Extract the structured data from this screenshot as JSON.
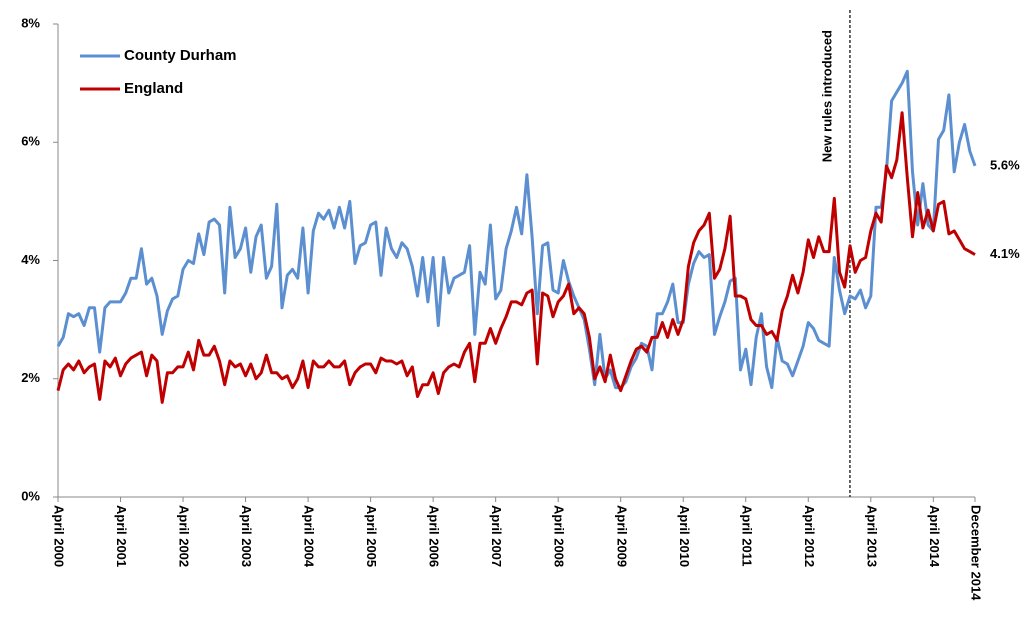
{
  "chart_data": {
    "type": "line",
    "categories": [
      "April 2000",
      null,
      null,
      null,
      null,
      null,
      null,
      null,
      null,
      null,
      null,
      null,
      "April 2001",
      null,
      null,
      null,
      null,
      null,
      null,
      null,
      null,
      null,
      null,
      null,
      "April 2002",
      null,
      null,
      null,
      null,
      null,
      null,
      null,
      null,
      null,
      null,
      null,
      "April 2003",
      null,
      null,
      null,
      null,
      null,
      null,
      null,
      null,
      null,
      null,
      null,
      "April 2004",
      null,
      null,
      null,
      null,
      null,
      null,
      null,
      null,
      null,
      null,
      null,
      "April 2005",
      null,
      null,
      null,
      null,
      null,
      null,
      null,
      null,
      null,
      null,
      null,
      "April 2006",
      null,
      null,
      null,
      null,
      null,
      null,
      null,
      null,
      null,
      null,
      null,
      "April 2007",
      null,
      null,
      null,
      null,
      null,
      null,
      null,
      null,
      null,
      null,
      null,
      "April 2008",
      null,
      null,
      null,
      null,
      null,
      null,
      null,
      null,
      null,
      null,
      null,
      "April 2009",
      null,
      null,
      null,
      null,
      null,
      null,
      null,
      null,
      null,
      null,
      null,
      "April 2010",
      null,
      null,
      null,
      null,
      null,
      null,
      null,
      null,
      null,
      null,
      null,
      "April 2011",
      null,
      null,
      null,
      null,
      null,
      null,
      null,
      null,
      null,
      null,
      null,
      "April 2012",
      null,
      null,
      null,
      null,
      null,
      null,
      null,
      null,
      null,
      null,
      null,
      "April 2013",
      null,
      null,
      null,
      null,
      null,
      null,
      null,
      null,
      null,
      null,
      null,
      "April 2014",
      null,
      null,
      null,
      null,
      null,
      null,
      null,
      "December 2014"
    ],
    "series": [
      {
        "name": "County Durham",
        "color": "#5b8fd0",
        "end_label": "5.6%",
        "values": [
          2.55,
          2.7,
          3.1,
          3.05,
          3.1,
          2.9,
          3.2,
          3.2,
          2.45,
          3.2,
          3.3,
          3.3,
          3.3,
          3.45,
          3.7,
          3.7,
          4.2,
          3.6,
          3.7,
          3.4,
          2.75,
          3.15,
          3.35,
          3.4,
          3.85,
          4.0,
          3.95,
          4.45,
          4.1,
          4.65,
          4.7,
          4.6,
          3.45,
          4.9,
          4.05,
          4.2,
          4.55,
          3.8,
          4.4,
          4.6,
          3.7,
          3.9,
          4.95,
          3.2,
          3.75,
          3.85,
          3.7,
          4.55,
          3.45,
          4.5,
          4.8,
          4.7,
          4.85,
          4.55,
          4.9,
          4.55,
          5.0,
          3.95,
          4.25,
          4.3,
          4.6,
          4.65,
          3.75,
          4.55,
          4.2,
          4.05,
          4.3,
          4.2,
          3.9,
          3.4,
          4.05,
          3.3,
          4.05,
          2.9,
          4.05,
          3.45,
          3.7,
          3.75,
          3.8,
          4.25,
          2.75,
          3.8,
          3.6,
          4.6,
          3.35,
          3.5,
          4.2,
          4.5,
          4.9,
          4.45,
          5.45,
          4.4,
          3.1,
          4.25,
          4.3,
          3.5,
          3.45,
          4.0,
          3.65,
          3.4,
          3.2,
          3.0,
          2.5,
          1.9,
          2.75,
          2.0,
          2.15,
          1.85,
          1.85,
          1.95,
          2.2,
          2.35,
          2.6,
          2.55,
          2.15,
          3.1,
          3.1,
          3.3,
          3.6,
          2.95,
          2.95,
          3.6,
          3.95,
          4.15,
          4.05,
          4.1,
          2.75,
          3.05,
          3.3,
          3.65,
          3.7,
          2.15,
          2.5,
          1.9,
          2.7,
          3.1,
          2.2,
          1.85,
          2.7,
          2.3,
          2.25,
          2.05,
          2.3,
          2.55,
          2.95,
          2.85,
          2.65,
          2.6,
          2.55,
          4.05,
          3.5,
          3.1,
          3.4,
          3.35,
          3.5,
          3.2,
          3.4,
          4.9,
          4.9,
          5.5,
          6.7,
          6.85,
          7.0,
          7.2,
          5.5,
          4.6,
          5.3,
          4.6,
          4.5,
          6.05,
          6.2,
          6.8,
          5.5,
          6.0,
          6.3,
          5.85,
          5.6
        ]
      },
      {
        "name": "England",
        "color": "#c00000",
        "end_label": "4.1%",
        "values": [
          1.8,
          2.15,
          2.25,
          2.15,
          2.3,
          2.1,
          2.2,
          2.25,
          1.65,
          2.3,
          2.2,
          2.35,
          2.05,
          2.25,
          2.35,
          2.4,
          2.45,
          2.05,
          2.4,
          2.3,
          1.6,
          2.1,
          2.1,
          2.2,
          2.2,
          2.45,
          2.15,
          2.65,
          2.4,
          2.4,
          2.55,
          2.3,
          1.9,
          2.3,
          2.2,
          2.25,
          2.05,
          2.25,
          2.0,
          2.1,
          2.4,
          2.1,
          2.1,
          2.0,
          2.05,
          1.85,
          2.0,
          2.3,
          1.85,
          2.3,
          2.2,
          2.2,
          2.3,
          2.2,
          2.2,
          2.3,
          1.9,
          2.1,
          2.2,
          2.25,
          2.25,
          2.1,
          2.35,
          2.3,
          2.3,
          2.25,
          2.3,
          2.05,
          2.2,
          1.7,
          1.9,
          1.9,
          2.1,
          1.75,
          2.1,
          2.2,
          2.25,
          2.2,
          2.45,
          2.6,
          1.95,
          2.6,
          2.6,
          2.85,
          2.6,
          2.85,
          3.05,
          3.3,
          3.3,
          3.25,
          3.45,
          3.5,
          2.25,
          3.45,
          3.4,
          3.05,
          3.3,
          3.4,
          3.6,
          3.1,
          3.2,
          3.1,
          2.7,
          2.0,
          2.2,
          1.95,
          2.4,
          2.0,
          1.8,
          2.05,
          2.3,
          2.5,
          2.55,
          2.45,
          2.7,
          2.7,
          2.95,
          2.7,
          3.0,
          2.75,
          3.0,
          3.9,
          4.3,
          4.5,
          4.6,
          4.8,
          3.7,
          3.85,
          4.2,
          4.75,
          3.4,
          3.4,
          3.35,
          3.0,
          2.9,
          2.9,
          2.75,
          2.8,
          2.65,
          3.15,
          3.4,
          3.75,
          3.45,
          3.8,
          4.35,
          4.05,
          4.4,
          4.15,
          4.15,
          5.05,
          3.8,
          3.55,
          4.25,
          3.8,
          4.0,
          4.05,
          4.5,
          4.8,
          4.65,
          5.6,
          5.4,
          5.7,
          6.5,
          5.4,
          4.4,
          5.15,
          4.55,
          4.85,
          4.5,
          4.95,
          5.0,
          4.45,
          4.5,
          4.35,
          4.2,
          4.15,
          4.1
        ]
      }
    ],
    "ylim": [
      0,
      8
    ],
    "yticks": [
      {
        "value": 0,
        "label": "0%"
      },
      {
        "value": 2,
        "label": "2%"
      },
      {
        "value": 4,
        "label": "4%"
      },
      {
        "value": 6,
        "label": "6%"
      },
      {
        "value": 8,
        "label": "8%"
      }
    ],
    "annotation": {
      "text": "New rules introduced",
      "index": 152
    },
    "legend": "upper-left",
    "grid": false
  }
}
